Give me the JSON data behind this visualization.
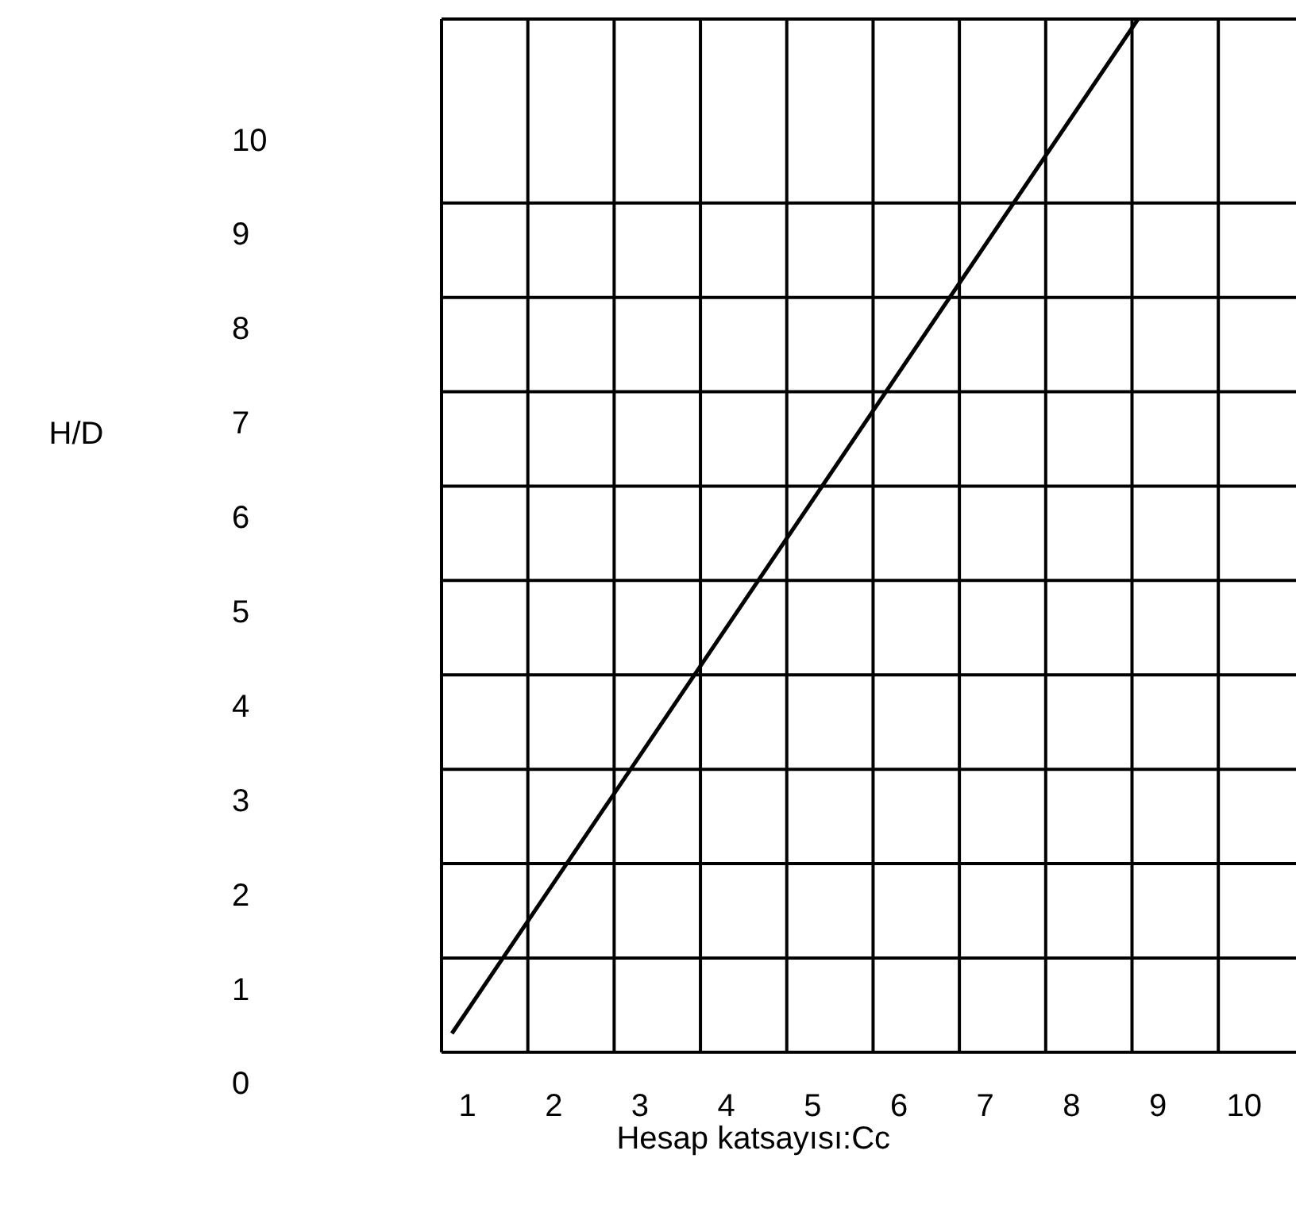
{
  "chart_data": {
    "type": "line",
    "xlabel": "Hesap katsayısı:Cc",
    "ylabel": "H/D",
    "x": [
      0.82,
      8.77
    ],
    "values": [
      0.55,
      11.3
    ],
    "color": "#000000",
    "xlim": [
      0.7,
      10.6
    ],
    "ylim": [
      0,
      11.3
    ],
    "xticks": [
      {
        "value": 0.7,
        "label": null
      },
      1,
      {
        "value": 1.7,
        "label": null
      },
      2,
      {
        "value": 2.7,
        "label": null
      },
      3,
      {
        "value": 3.7,
        "label": null
      },
      4,
      {
        "value": 4.7,
        "label": null
      },
      5,
      {
        "value": 5.7,
        "label": null
      },
      6,
      {
        "value": 6.7,
        "label": null
      },
      7,
      {
        "value": 7.7,
        "label": null
      },
      8,
      {
        "value": 8.7,
        "label": null
      },
      9,
      {
        "value": 9.7,
        "label": null
      },
      10
    ],
    "yticks": [
      0,
      {
        "value": 0.35,
        "label": null
      },
      1,
      {
        "value": 1.35,
        "label": null
      },
      2,
      {
        "value": 2.35,
        "label": null
      },
      3,
      {
        "value": 3.35,
        "label": null
      },
      4,
      {
        "value": 4.35,
        "label": null
      },
      5,
      {
        "value": 5.35,
        "label": null
      },
      6,
      {
        "value": 6.35,
        "label": null
      },
      7,
      {
        "value": 7.35,
        "label": null
      },
      8,
      {
        "value": 8.35,
        "label": null
      },
      9,
      {
        "value": 9.35,
        "label": null
      },
      10,
      {
        "value": 11.3,
        "label": null
      }
    ],
    "grid": true,
    "marker": "none",
    "line_style": "solid"
  }
}
